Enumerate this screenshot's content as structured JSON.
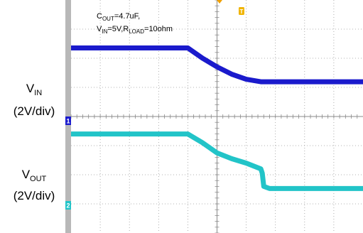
{
  "chart_data": {
    "type": "line",
    "title": "",
    "annotation": {
      "line1": {
        "p1": "C",
        "p2": "OUT",
        "p3": "=4.7uF,"
      },
      "line2": {
        "p1": "V",
        "p2": "IN",
        "p3": "=5V,R",
        "p4": "LOAD",
        "p5": "=10ohm"
      }
    },
    "x": {
      "divisions": 10
    },
    "grid": true,
    "trigger_marker": "T",
    "series": [
      {
        "name": "VIN",
        "label": {
          "main": "V",
          "sub": "IN",
          "scale": "(2V/div)"
        },
        "marker": "1",
        "color": "#1a1acc",
        "volts_per_div": 2,
        "points": [
          [
            0,
            5.0
          ],
          [
            4.0,
            5.0
          ],
          [
            4.5,
            4.3
          ],
          [
            5.0,
            3.7
          ],
          [
            5.5,
            3.2
          ],
          [
            6.0,
            2.85
          ],
          [
            6.5,
            2.68
          ],
          [
            10,
            2.68
          ]
        ]
      },
      {
        "name": "VOUT",
        "label": {
          "main": "V",
          "sub": "OUT",
          "scale": "(2V/div)"
        },
        "marker": "2",
        "color": "#22c4c8",
        "volts_per_div": 2,
        "points": [
          [
            0,
            4.9
          ],
          [
            4.0,
            4.9
          ],
          [
            4.5,
            4.3
          ],
          [
            5.0,
            3.6
          ],
          [
            5.5,
            3.2
          ],
          [
            6.0,
            2.9
          ],
          [
            6.5,
            2.5
          ],
          [
            6.55,
            2.2
          ],
          [
            6.6,
            1.3
          ],
          [
            6.8,
            1.15
          ],
          [
            10,
            1.15
          ]
        ]
      }
    ]
  }
}
